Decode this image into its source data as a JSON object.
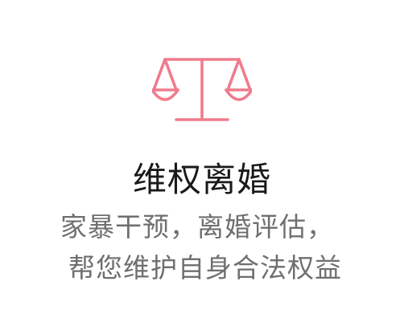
{
  "service": {
    "icon": "scales-of-justice-icon",
    "accent_color": "#f07b8c",
    "title": "维权离婚",
    "description_lines": [
      "家暴干预，离婚评估，",
      "帮您维护自身合法权益"
    ]
  }
}
